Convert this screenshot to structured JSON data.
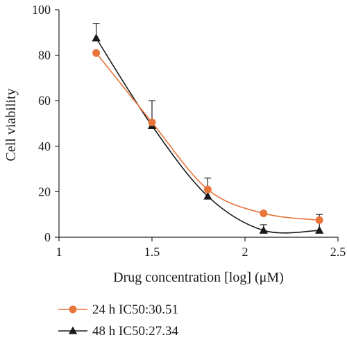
{
  "chart_data": {
    "type": "line",
    "xlabel": "Drug concentration [log] (μM)",
    "ylabel": "Cell viability",
    "xlim": [
      1,
      2.5
    ],
    "ylim": [
      0,
      100
    ],
    "x_ticks": [
      "1",
      "1.5",
      "2",
      "2.5"
    ],
    "y_ticks": [
      "0",
      "20",
      "40",
      "60",
      "80",
      "100"
    ],
    "grid": false,
    "legend_position": "bottom",
    "x": [
      1.2,
      1.5,
      1.8,
      2.1,
      2.4
    ],
    "series": [
      {
        "name": "24 h IC50:30.51",
        "marker": "circle",
        "color": "#E8743B",
        "values": [
          81,
          50.5,
          21,
          10.5,
          7.5
        ],
        "error": [
          0,
          0,
          0,
          0,
          0
        ]
      },
      {
        "name": "48 h IC50:27.34",
        "marker": "triangle",
        "color": "#1a1a1a",
        "values": [
          87.5,
          49,
          18,
          3,
          3
        ],
        "error": [
          6.5,
          11,
          8,
          2.5,
          7
        ]
      }
    ]
  }
}
